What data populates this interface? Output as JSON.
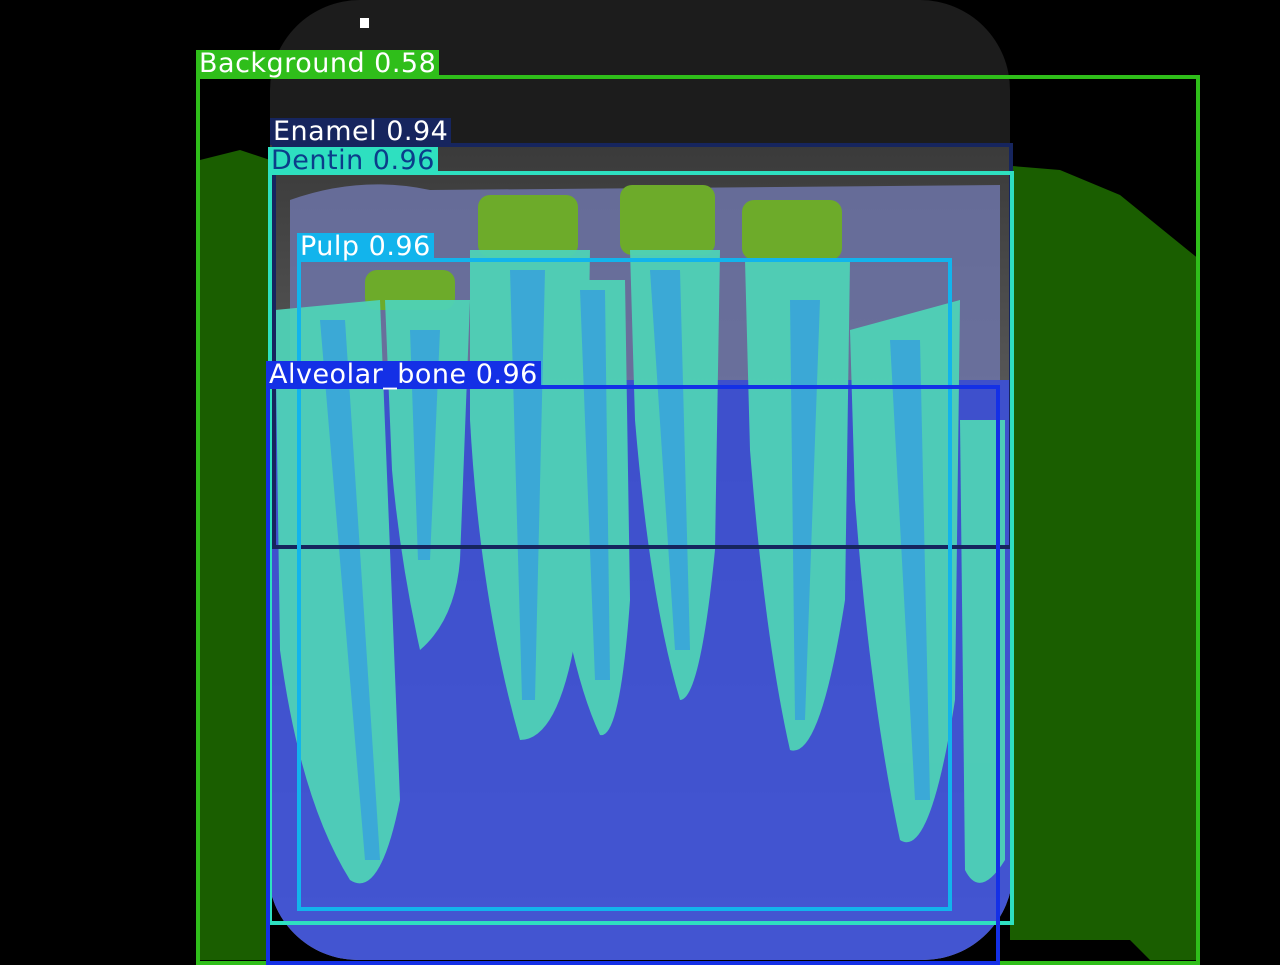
{
  "image": {
    "description_only_colors": {
      "background": "#000000",
      "gum_mask": "#1a5e00",
      "dentin_mask": "#4fd2b6",
      "pulp_mask": "#3aa7d8",
      "bone_mask": "#3c4fd6",
      "enamel_mask": "#6dab2a"
    }
  },
  "detections": [
    {
      "id": "background",
      "label": "Background 0.58",
      "color": "#2fbe1a",
      "text_color": "#ffffff"
    },
    {
      "id": "enamel",
      "label": "Enamel 0.94",
      "color": "#16255e",
      "text_color": "#ffffff"
    },
    {
      "id": "dentin",
      "label": "Dentin 0.96",
      "color": "#2ee0c0",
      "text_color": "#0b3d8a"
    },
    {
      "id": "pulp",
      "label": "Pulp 0.96",
      "color": "#12b4ec",
      "text_color": "#ffffff"
    },
    {
      "id": "alveolar-bone",
      "label": "Alveolar_bone 0.96",
      "color": "#1430e6",
      "text_color": "#ffffff"
    }
  ]
}
